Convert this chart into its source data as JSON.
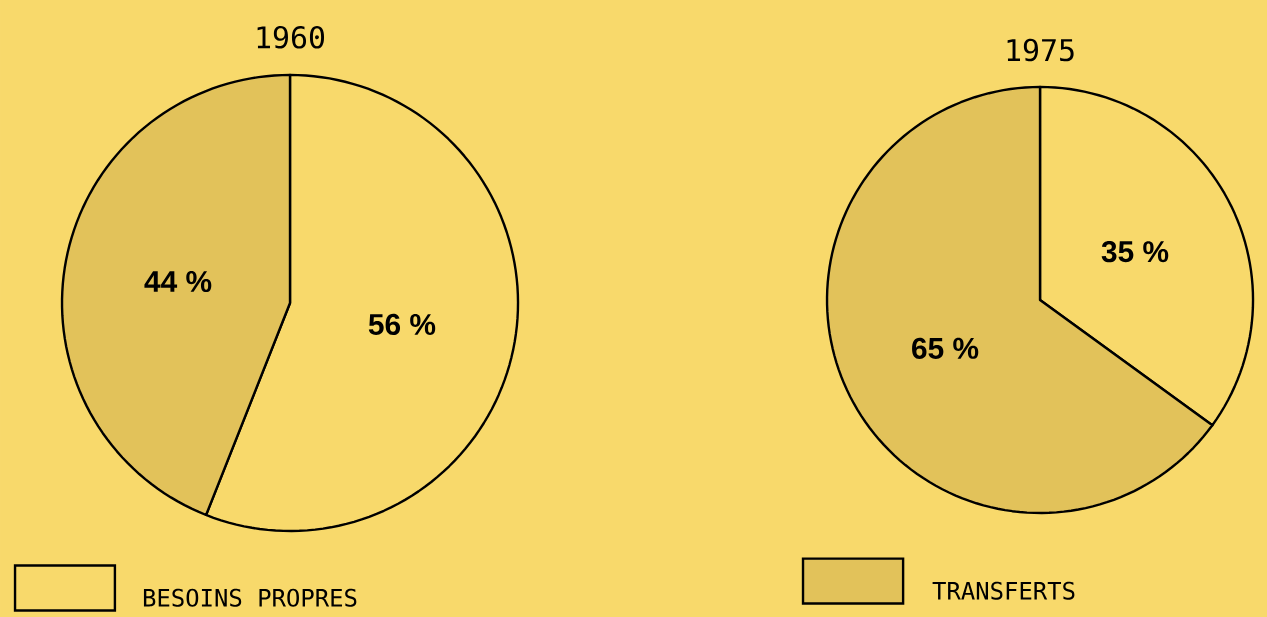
{
  "chart_data": [
    {
      "type": "pie",
      "title": "1960",
      "categories": [
        "BESOINS PROPRES",
        "TRANSFERTS"
      ],
      "values": [
        56,
        44
      ],
      "colors": [
        "#f8d96b",
        "#e2c25a"
      ],
      "value_labels": [
        "56 %",
        "44 %"
      ],
      "legend": "bottom"
    },
    {
      "type": "pie",
      "title": "1975",
      "categories": [
        null,
        null
      ],
      "values": [
        35,
        65
      ],
      "colors": [
        "#f8d96b",
        "#e2c25a"
      ],
      "value_labels": [
        "35 %",
        "65 %"
      ]
    }
  ]
}
